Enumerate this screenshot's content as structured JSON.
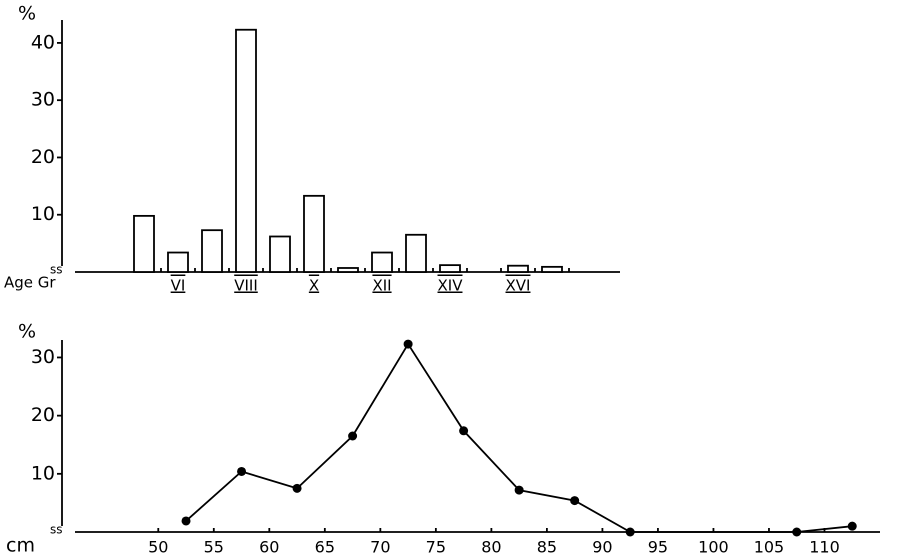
{
  "chart_data": [
    {
      "type": "bar",
      "y_label": "%",
      "x_label": "Age Gr",
      "categories": [
        null,
        "VI",
        null,
        "VIII",
        null,
        "X",
        null,
        "XII",
        null,
        "XIV",
        null,
        "XVI",
        null
      ],
      "values": [
        9.8,
        3.4,
        7.3,
        42.3,
        6.2,
        13.3,
        0.7,
        3.4,
        6.5,
        1.2,
        0,
        1.1,
        0.9
      ],
      "color": "#ffffff",
      "ylim": [
        0,
        44
      ],
      "yticks": [
        10,
        20,
        30,
        40
      ]
    },
    {
      "type": "line",
      "y_label": "%",
      "x_label": "cm",
      "x": [
        52.5,
        57.5,
        62.5,
        67.5,
        72.5,
        77.5,
        82.5,
        87.5,
        92.5,
        107.5,
        112.5
      ],
      "values": [
        1.9,
        10.4,
        7.5,
        16.5,
        32.3,
        17.4,
        7.2,
        5.4,
        0,
        0,
        1
      ],
      "color": "#000000",
      "xlim": [
        42.5,
        115
      ],
      "ylim": [
        0,
        33
      ],
      "xticks": [
        50,
        55,
        60,
        65,
        70,
        75,
        80,
        85,
        90,
        95,
        100,
        105,
        110
      ],
      "yticks": [
        10,
        20,
        30
      ]
    }
  ]
}
